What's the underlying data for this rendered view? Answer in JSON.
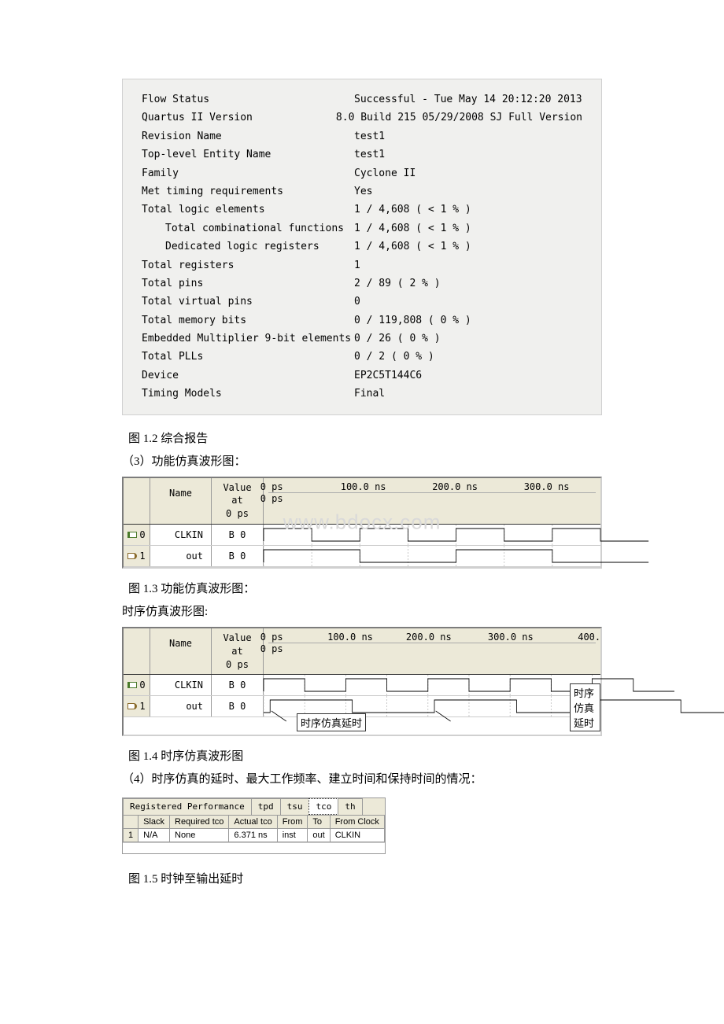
{
  "summary": {
    "rows": [
      {
        "label": "Flow Status",
        "value": "Successful - Tue May 14 20:12:20 2013"
      },
      {
        "label": "Quartus II Version",
        "value": "8.0 Build 215 05/29/2008 SJ Full Version"
      },
      {
        "label": "Revision Name",
        "value": "test1"
      },
      {
        "label": "Top-level Entity Name",
        "value": "test1"
      },
      {
        "label": "Family",
        "value": "Cyclone II"
      },
      {
        "label": "Met timing requirements",
        "value": "Yes"
      },
      {
        "label": "Total logic elements",
        "value": "1 / 4,608 ( < 1 % )"
      },
      {
        "label": "Total combinational functions",
        "value": "1 / 4,608 ( < 1 % )",
        "indent": true
      },
      {
        "label": "Dedicated logic registers",
        "value": "1 / 4,608 ( < 1 % )",
        "indent": true
      },
      {
        "label": "Total registers",
        "value": "1"
      },
      {
        "label": "Total pins",
        "value": "2 / 89 ( 2 % )"
      },
      {
        "label": "Total virtual pins",
        "value": "0"
      },
      {
        "label": "Total memory bits",
        "value": "0 / 119,808 ( 0 % )"
      },
      {
        "label": "Embedded Multiplier 9-bit elements",
        "value": "0 / 26 ( 0 % )"
      },
      {
        "label": "Total PLLs",
        "value": "0 / 2 ( 0 % )"
      },
      {
        "label": "Device",
        "value": "EP2C5T144C6"
      },
      {
        "label": "Timing Models",
        "value": "Final"
      }
    ]
  },
  "captions": {
    "fig12": "图 1.2 综合报告",
    "para3": "（3）功能仿真波形图：",
    "fig13": "图 1.3 功能仿真波形图：",
    "timingPara": "时序仿真波形图:",
    "fig14": "图 1.4 时序仿真波形图",
    "para4": "（4）时序仿真的延时、最大工作频率、建立时间和保持时间的情况：",
    "fig15": "图 1.5 时钟至输出延时"
  },
  "waveform": {
    "header_name": "Name",
    "header_value_l1": "Value at",
    "header_value_l2": "0 ps",
    "timeline_top": "0 ps",
    "timeline_bottom": "0 ps",
    "watermark": "www.bdocx.com",
    "ticks1": [
      "0 ps",
      "100.0 ns",
      "200.0 ns",
      "300.0 ns"
    ],
    "ticks2": [
      "0 ps",
      "100.0 ns",
      "200.0 ns",
      "300.0 ns",
      "400."
    ],
    "signals": [
      {
        "idx": "0",
        "dir": "in",
        "name": "CLKIN",
        "value": "B 0"
      },
      {
        "idx": "1",
        "dir": "out",
        "name": "out",
        "value": "B 0"
      }
    ],
    "annotation": "时序仿真延时"
  },
  "tco_panel": {
    "tabs": [
      "Registered Performance",
      "tpd",
      "tsu",
      "tco",
      "th"
    ],
    "active_tab": 3,
    "columns": [
      "",
      "Slack",
      "Required tco",
      "Actual tco",
      "From",
      "To",
      "From Clock"
    ],
    "rows": [
      {
        "idx": "1",
        "cells": [
          "N/A",
          "None",
          "6.371 ns",
          "inst",
          "out",
          "CLKIN"
        ]
      }
    ]
  },
  "colors": {
    "panel_bg": "#f0f0ee",
    "win_bg": "#ece9d8",
    "border": "#999999",
    "text": "#000000",
    "grid": "#c0c0c0"
  }
}
